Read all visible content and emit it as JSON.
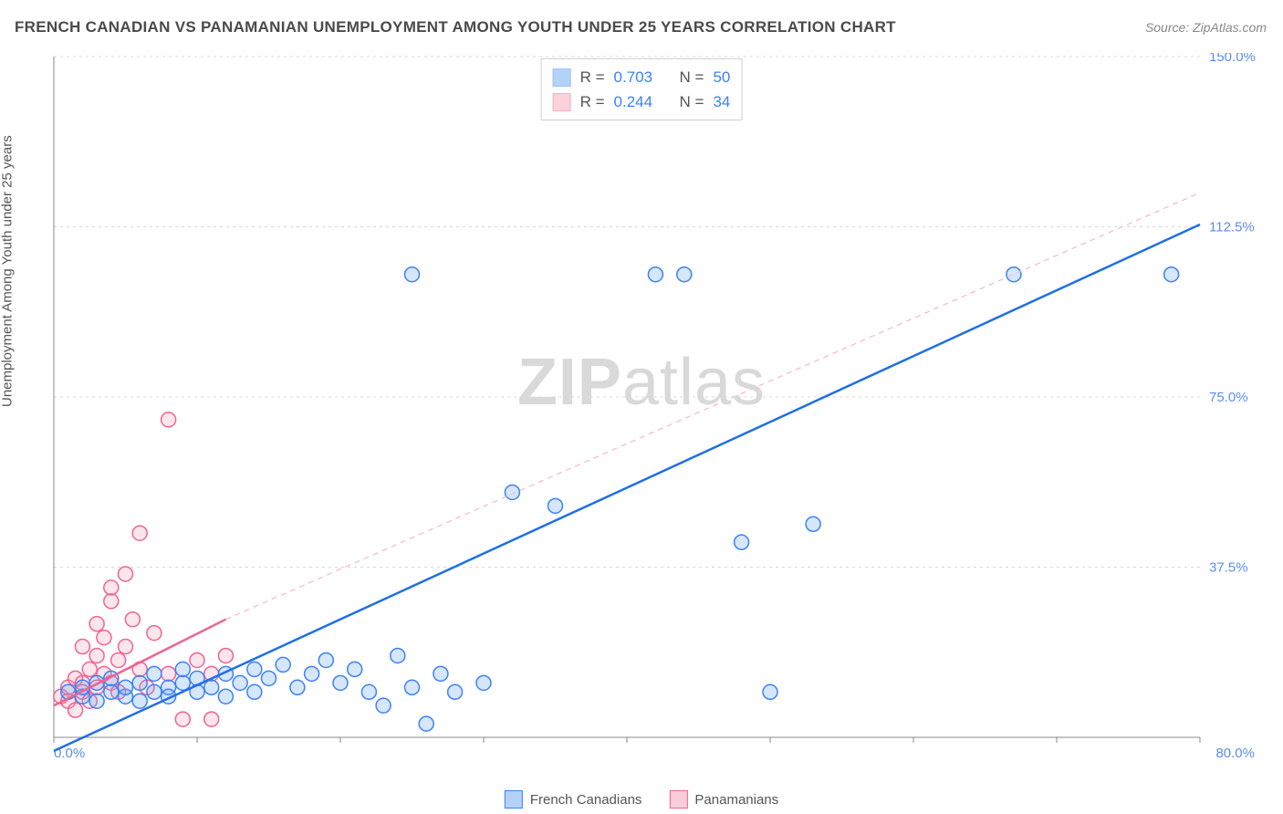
{
  "title": "FRENCH CANADIAN VS PANAMANIAN UNEMPLOYMENT AMONG YOUTH UNDER 25 YEARS CORRELATION CHART",
  "source": "Source: ZipAtlas.com",
  "y_axis_label": "Unemployment Among Youth under 25 years",
  "watermark_bold": "ZIP",
  "watermark_rest": "atlas",
  "chart": {
    "type": "scatter",
    "background_color": "#ffffff",
    "grid_color": "#d8d8d8",
    "axis_color": "#888888",
    "xlim": [
      0,
      80
    ],
    "ylim": [
      0,
      150
    ],
    "x_ticks": [
      0,
      10,
      20,
      30,
      40,
      50,
      60,
      70,
      80
    ],
    "y_ticks": [
      0,
      37.5,
      75,
      112.5,
      150
    ],
    "x_tick_labels": {
      "0": "0.0%",
      "80": "80.0%"
    },
    "y_tick_labels": {
      "37.5": "37.5%",
      "75": "75.0%",
      "112.5": "112.5%",
      "150": "150.0%"
    },
    "tick_label_color": "#5b8def",
    "tick_label_fontsize": 15,
    "marker_radius": 8,
    "marker_stroke_width": 1.5,
    "marker_fill_opacity": 0.28,
    "series": [
      {
        "name": "French Canadians",
        "color": "#6aa6f2",
        "stroke": "#3b82f6",
        "R": "0.703",
        "N": "50",
        "trend": {
          "x1": 0,
          "y1": -3,
          "x2": 80,
          "y2": 113,
          "stroke": "#1f6fe5",
          "width": 2.5,
          "dash": "none"
        },
        "points": [
          [
            1,
            10
          ],
          [
            2,
            9
          ],
          [
            2,
            11
          ],
          [
            3,
            8
          ],
          [
            3,
            12
          ],
          [
            4,
            10
          ],
          [
            4,
            13
          ],
          [
            5,
            9
          ],
          [
            5,
            11
          ],
          [
            6,
            8
          ],
          [
            6,
            12
          ],
          [
            7,
            10
          ],
          [
            7,
            14
          ],
          [
            8,
            11
          ],
          [
            8,
            9
          ],
          [
            9,
            12
          ],
          [
            9,
            15
          ],
          [
            10,
            10
          ],
          [
            10,
            13
          ],
          [
            11,
            11
          ],
          [
            12,
            14
          ],
          [
            12,
            9
          ],
          [
            13,
            12
          ],
          [
            14,
            15
          ],
          [
            14,
            10
          ],
          [
            15,
            13
          ],
          [
            16,
            16
          ],
          [
            17,
            11
          ],
          [
            18,
            14
          ],
          [
            19,
            17
          ],
          [
            20,
            12
          ],
          [
            21,
            15
          ],
          [
            22,
            10
          ],
          [
            23,
            7
          ],
          [
            24,
            18
          ],
          [
            25,
            11
          ],
          [
            26,
            3
          ],
          [
            27,
            14
          ],
          [
            28,
            10
          ],
          [
            30,
            12
          ],
          [
            32,
            54
          ],
          [
            35,
            51
          ],
          [
            42,
            102
          ],
          [
            44,
            102
          ],
          [
            48,
            43
          ],
          [
            50,
            10
          ],
          [
            53,
            47
          ],
          [
            67,
            102
          ],
          [
            78,
            102
          ],
          [
            25,
            102
          ]
        ]
      },
      {
        "name": "Panamanians",
        "color": "#f4a6b8",
        "stroke": "#f06292",
        "R": "0.244",
        "N": "34",
        "trend": {
          "x1": 0,
          "y1": 7,
          "x2": 12,
          "y2": 26,
          "stroke": "#f06292",
          "width": 2.5,
          "dash": "none"
        },
        "trend_ext": {
          "x1": 12,
          "y1": 26,
          "x2": 80,
          "y2": 120,
          "stroke": "#f8b8c8",
          "width": 1.2,
          "dash": "6 5"
        },
        "points": [
          [
            0.5,
            9
          ],
          [
            1,
            11
          ],
          [
            1,
            8
          ],
          [
            1.5,
            13
          ],
          [
            1.5,
            6
          ],
          [
            2,
            12
          ],
          [
            2,
            10
          ],
          [
            2,
            20
          ],
          [
            2.5,
            15
          ],
          [
            2.5,
            8
          ],
          [
            3,
            18
          ],
          [
            3,
            11
          ],
          [
            3,
            25
          ],
          [
            3.5,
            14
          ],
          [
            3.5,
            22
          ],
          [
            4,
            30
          ],
          [
            4,
            12
          ],
          [
            4,
            33
          ],
          [
            4.5,
            17
          ],
          [
            4.5,
            10
          ],
          [
            5,
            20
          ],
          [
            5,
            36
          ],
          [
            5.5,
            26
          ],
          [
            6,
            15
          ],
          [
            6,
            45
          ],
          [
            6.5,
            11
          ],
          [
            7,
            23
          ],
          [
            8,
            70
          ],
          [
            8,
            14
          ],
          [
            9,
            4
          ],
          [
            10,
            17
          ],
          [
            11,
            14
          ],
          [
            11,
            4
          ],
          [
            12,
            18
          ]
        ]
      }
    ]
  },
  "bottom_legend": [
    {
      "label": "French Canadians",
      "fill": "#b6d1f7",
      "stroke": "#3b82f6"
    },
    {
      "label": "Panamanians",
      "fill": "#f9cdd8",
      "stroke": "#f06292"
    }
  ],
  "stat_legend": {
    "r_label": "R =",
    "n_label": "N ="
  }
}
